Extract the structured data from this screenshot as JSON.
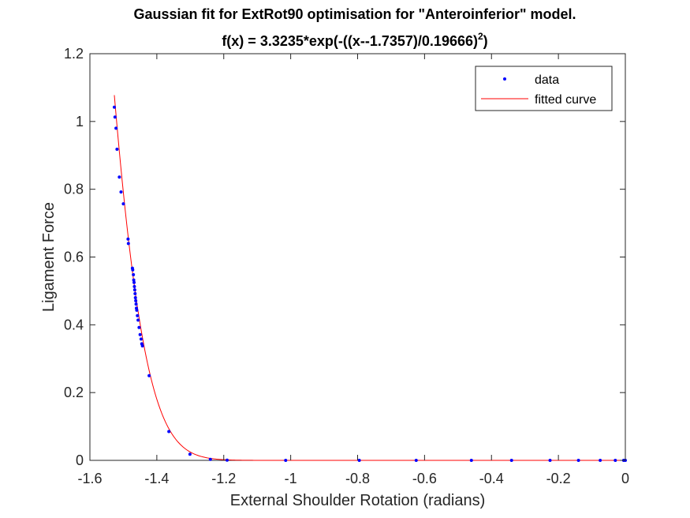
{
  "chart_data": {
    "type": "scatter",
    "title_line1": "Gaussian fit for ExtRot90 optimisation for \"Anteroinferior\" model.",
    "title_line2_base": "f(x) = 3.3235*exp(-((x--1.7357)/0.19666)",
    "title_line2_exp": "2",
    "title_line2_end": ")",
    "xlabel": "External Shoulder Rotation (radians)",
    "ylabel": "Ligament Force",
    "xlim": [
      -1.6,
      0
    ],
    "ylim": [
      0,
      1.2
    ],
    "xticks": [
      -1.6,
      -1.4,
      -1.2,
      -1,
      -0.8,
      -0.6,
      -0.4,
      -0.2,
      0
    ],
    "xtick_labels": [
      "-1.6",
      "-1.4",
      "-1.2",
      "-1",
      "-0.8",
      "-0.6",
      "-0.4",
      "-0.2",
      "0"
    ],
    "yticks": [
      0,
      0.2,
      0.4,
      0.6,
      0.8,
      1,
      1.2
    ],
    "ytick_labels": [
      "0",
      "0.2",
      "0.4",
      "0.6",
      "0.8",
      "1",
      "1.2"
    ],
    "grid": false,
    "legend_position": "top-right",
    "fit": {
      "a": 3.3235,
      "b": -1.7357,
      "c": 0.19666
    },
    "series": [
      {
        "name": "data",
        "style": "points",
        "color": "#0000ff",
        "x": [
          -1.527,
          -1.525,
          -1.522,
          -1.519,
          -1.512,
          -1.507,
          -1.5,
          -1.486,
          -1.485,
          -1.473,
          -1.472,
          -1.47,
          -1.469,
          -1.468,
          -1.467,
          -1.466,
          -1.465,
          -1.464,
          -1.463,
          -1.462,
          -1.461,
          -1.46,
          -1.458,
          -1.456,
          -1.453,
          -1.45,
          -1.447,
          -1.445,
          -1.443,
          -1.423,
          -1.364,
          -1.301,
          -1.24,
          -1.19,
          -1.015,
          -0.795,
          -0.625,
          -0.46,
          -0.34,
          -0.225,
          -0.14,
          -0.075,
          -0.03,
          -0.005,
          0.0
        ],
        "y": [
          1.042,
          1.013,
          0.98,
          0.918,
          0.836,
          0.792,
          0.757,
          0.653,
          0.64,
          0.567,
          0.562,
          0.548,
          0.532,
          0.525,
          0.513,
          0.503,
          0.492,
          0.48,
          0.471,
          0.461,
          0.449,
          0.443,
          0.427,
          0.414,
          0.392,
          0.371,
          0.358,
          0.344,
          0.338,
          0.25,
          0.085,
          0.018,
          0.003,
          0.0005,
          0.0,
          0.0,
          0.0,
          0.0,
          0.0,
          0.0,
          0.0,
          0.0,
          0.0,
          0.0,
          0.0
        ]
      },
      {
        "name": "fitted curve",
        "style": "line",
        "color": "#ff0000"
      }
    ]
  }
}
